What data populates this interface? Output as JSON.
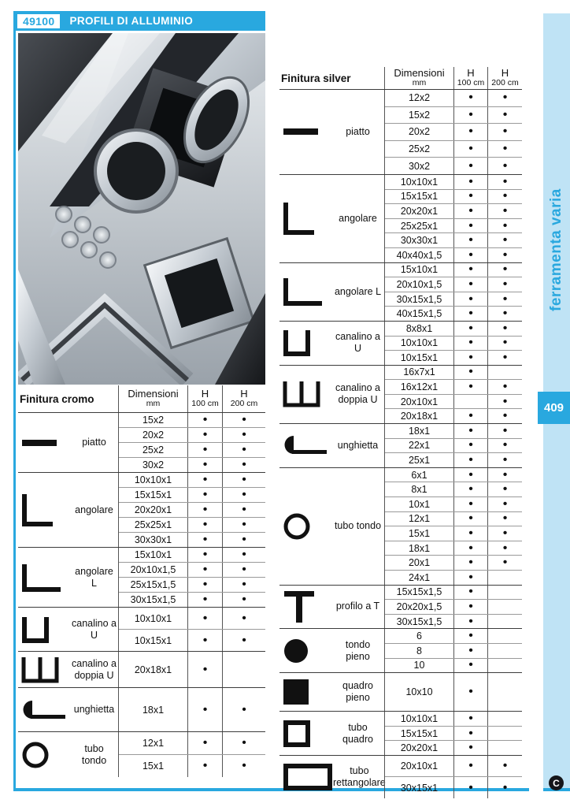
{
  "header": {
    "code": "49100",
    "title": "PROFILI DI ALLUMINIO"
  },
  "sidebar": {
    "tab_label": "ferramenta varia",
    "page_number": "409"
  },
  "footer": {
    "logo_letter": "C"
  },
  "colors": {
    "accent": "#29A8DF",
    "sidebar_bg": "#BFE3F5",
    "dark_line": "#3c3c3c",
    "light_line": "#9a9a9a"
  },
  "tables": [
    {
      "id": "cromo",
      "title": "Finitura cromo",
      "columns": {
        "dim": "Dimensioni",
        "dim_unit": "mm",
        "h1": "H",
        "h1_unit": "100 cm",
        "h2": "H",
        "h2_unit": "200 cm"
      },
      "sections": [
        {
          "profile": "piatto",
          "icon": "flat-bar",
          "rows": [
            {
              "dim": "15x2",
              "h100": "•",
              "h200": "•"
            },
            {
              "dim": "20x2",
              "h100": "•",
              "h200": "•"
            },
            {
              "dim": "25x2",
              "h100": "•",
              "h200": "•"
            },
            {
              "dim": "30x2",
              "h100": "•",
              "h200": "•"
            }
          ]
        },
        {
          "profile": "angolare",
          "icon": "angle",
          "rows": [
            {
              "dim": "10x10x1",
              "h100": "•",
              "h200": "•"
            },
            {
              "dim": "15x15x1",
              "h100": "•",
              "h200": "•"
            },
            {
              "dim": "20x20x1",
              "h100": "•",
              "h200": "•"
            },
            {
              "dim": "25x25x1",
              "h100": "•",
              "h200": "•"
            },
            {
              "dim": "30x30x1",
              "h100": "•",
              "h200": "•"
            }
          ]
        },
        {
          "profile": "angolare L",
          "icon": "angle-l",
          "rows": [
            {
              "dim": "15x10x1",
              "h100": "•",
              "h200": "•"
            },
            {
              "dim": "20x10x1,5",
              "h100": "•",
              "h200": "•"
            },
            {
              "dim": "25x15x1,5",
              "h100": "•",
              "h200": "•"
            },
            {
              "dim": "30x15x1,5",
              "h100": "•",
              "h200": "•"
            }
          ]
        },
        {
          "profile": "canalino a U",
          "icon": "u-channel",
          "rows": [
            {
              "dim": "10x10x1",
              "h100": "•",
              "h200": "•"
            },
            {
              "dim": "10x15x1",
              "h100": "•",
              "h200": "•"
            }
          ]
        },
        {
          "profile": "canalino a\ndoppia U",
          "icon": "double-u-channel",
          "rows": [
            {
              "dim": "20x18x1",
              "h100": "•",
              "h200": ""
            }
          ]
        },
        {
          "profile": "unghietta",
          "icon": "unghietta-hook",
          "rows": [
            {
              "dim": "18x1",
              "h100": "•",
              "h200": "•"
            }
          ]
        },
        {
          "profile": "tubo tondo",
          "icon": "round-tube",
          "rows": [
            {
              "dim": "12x1",
              "h100": "•",
              "h200": "•"
            },
            {
              "dim": "15x1",
              "h100": "•",
              "h200": "•"
            }
          ]
        }
      ]
    },
    {
      "id": "silver",
      "title": "Finitura silver",
      "columns": {
        "dim": "Dimensioni",
        "dim_unit": "mm",
        "h1": "H",
        "h1_unit": "100 cm",
        "h2": "H",
        "h2_unit": "200 cm"
      },
      "sections": [
        {
          "profile": "piatto",
          "icon": "flat-bar",
          "rows": [
            {
              "dim": "12x2",
              "h100": "•",
              "h200": "•"
            },
            {
              "dim": "15x2",
              "h100": "•",
              "h200": "•"
            },
            {
              "dim": "20x2",
              "h100": "•",
              "h200": "•"
            },
            {
              "dim": "25x2",
              "h100": "•",
              "h200": "•"
            },
            {
              "dim": "30x2",
              "h100": "•",
              "h200": "•"
            }
          ]
        },
        {
          "profile": "angolare",
          "icon": "angle",
          "rows": [
            {
              "dim": "10x10x1",
              "h100": "•",
              "h200": "•"
            },
            {
              "dim": "15x15x1",
              "h100": "•",
              "h200": "•"
            },
            {
              "dim": "20x20x1",
              "h100": "•",
              "h200": "•"
            },
            {
              "dim": "25x25x1",
              "h100": "•",
              "h200": "•"
            },
            {
              "dim": "30x30x1",
              "h100": "•",
              "h200": "•"
            },
            {
              "dim": "40x40x1,5",
              "h100": "•",
              "h200": "•"
            }
          ]
        },
        {
          "profile": "angolare L",
          "icon": "angle-l",
          "rows": [
            {
              "dim": "15x10x1",
              "h100": "•",
              "h200": "•"
            },
            {
              "dim": "20x10x1,5",
              "h100": "•",
              "h200": "•"
            },
            {
              "dim": "30x15x1,5",
              "h100": "•",
              "h200": "•"
            },
            {
              "dim": "40x15x1,5",
              "h100": "•",
              "h200": "•"
            }
          ]
        },
        {
          "profile": "canalino a U",
          "icon": "u-channel",
          "rows": [
            {
              "dim": "8x8x1",
              "h100": "•",
              "h200": "•"
            },
            {
              "dim": "10x10x1",
              "h100": "•",
              "h200": "•"
            },
            {
              "dim": "10x15x1",
              "h100": "•",
              "h200": "•"
            }
          ]
        },
        {
          "profile": "canalino a\ndoppia U",
          "icon": "double-u-channel",
          "rows": [
            {
              "dim": "16x7x1",
              "h100": "•",
              "h200": ""
            },
            {
              "dim": "16x12x1",
              "h100": "•",
              "h200": "•"
            },
            {
              "dim": "20x10x1",
              "h100": "",
              "h200": "•"
            },
            {
              "dim": "20x18x1",
              "h100": "•",
              "h200": "•"
            }
          ]
        },
        {
          "profile": "unghietta",
          "icon": "unghietta-hook",
          "rows": [
            {
              "dim": "18x1",
              "h100": "•",
              "h200": "•"
            },
            {
              "dim": "22x1",
              "h100": "•",
              "h200": "•"
            },
            {
              "dim": "25x1",
              "h100": "•",
              "h200": "•"
            }
          ]
        },
        {
          "profile": "tubo tondo",
          "icon": "round-tube",
          "rows": [
            {
              "dim": "6x1",
              "h100": "•",
              "h200": "•"
            },
            {
              "dim": "8x1",
              "h100": "•",
              "h200": "•"
            },
            {
              "dim": "10x1",
              "h100": "•",
              "h200": "•"
            },
            {
              "dim": "12x1",
              "h100": "•",
              "h200": "•"
            },
            {
              "dim": "15x1",
              "h100": "•",
              "h200": "•"
            },
            {
              "dim": "18x1",
              "h100": "•",
              "h200": "•"
            },
            {
              "dim": "20x1",
              "h100": "•",
              "h200": "•"
            },
            {
              "dim": "24x1",
              "h100": "•",
              "h200": ""
            }
          ]
        },
        {
          "profile": "profilo a T",
          "icon": "t-profile",
          "rows": [
            {
              "dim": "15x15x1,5",
              "h100": "•",
              "h200": ""
            },
            {
              "dim": "20x20x1,5",
              "h100": "•",
              "h200": ""
            },
            {
              "dim": "30x15x1,5",
              "h100": "•",
              "h200": ""
            }
          ]
        },
        {
          "profile": "tondo pieno",
          "icon": "solid-round",
          "rows": [
            {
              "dim": "6",
              "h100": "•",
              "h200": ""
            },
            {
              "dim": "8",
              "h100": "•",
              "h200": ""
            },
            {
              "dim": "10",
              "h100": "•",
              "h200": ""
            }
          ]
        },
        {
          "profile": "quadro\npieno",
          "icon": "solid-square",
          "rows": [
            {
              "dim": "10x10",
              "h100": "•",
              "h200": ""
            }
          ]
        },
        {
          "profile": "tubo quadro",
          "icon": "square-tube",
          "rows": [
            {
              "dim": "10x10x1",
              "h100": "•",
              "h200": ""
            },
            {
              "dim": "15x15x1",
              "h100": "•",
              "h200": ""
            },
            {
              "dim": "20x20x1",
              "h100": "•",
              "h200": ""
            }
          ]
        },
        {
          "profile": "tubo\nrettangolare",
          "icon": "rect-tube",
          "rows": [
            {
              "dim": "20x10x1",
              "h100": "•",
              "h200": "•"
            },
            {
              "dim": "30x15x1",
              "h100": "•",
              "h200": "•"
            }
          ]
        }
      ]
    }
  ]
}
